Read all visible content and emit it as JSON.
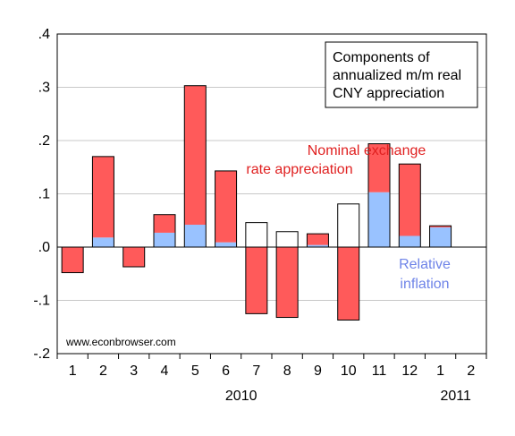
{
  "chart_data": {
    "type": "bar",
    "stacked": true,
    "ylim": [
      -0.2,
      0.4
    ],
    "ytick_values": [
      -0.2,
      -0.1,
      0.0,
      0.1,
      0.2,
      0.3,
      0.4
    ],
    "ytick_labels": [
      "-.2",
      "-.1",
      ".0",
      ".1",
      ".2",
      ".3",
      ".4"
    ],
    "categories": [
      "1",
      "2",
      "3",
      "4",
      "5",
      "6",
      "7",
      "8",
      "9",
      "10",
      "11",
      "12",
      "1",
      "2"
    ],
    "year_labels": [
      {
        "label": "2010",
        "under_category_index": 5.5
      },
      {
        "label": "2011",
        "under_category_index": 12.5
      }
    ],
    "series": [
      {
        "name": "Relative inflation",
        "color": "#99c2ff",
        "values": [
          0.0,
          0.018,
          0.0,
          0.027,
          0.042,
          0.009,
          0.0,
          0.0,
          0.004,
          0.0,
          0.103,
          0.021,
          0.037,
          null
        ]
      },
      {
        "name": "Nominal exchange rate appreciation",
        "color": "#ff5a5a",
        "values": [
          -0.048,
          0.152,
          -0.037,
          0.034,
          0.261,
          0.134,
          -0.125,
          -0.132,
          0.021,
          -0.137,
          0.091,
          0.135,
          0.003,
          null
        ]
      }
    ],
    "net_lines": [
      {
        "from": -0.048,
        "to": 0.0
      },
      {
        "from": 0.0,
        "to": 0.17
      },
      {
        "from": -0.037,
        "to": 0.0
      },
      {
        "from": 0.0,
        "to": 0.061
      },
      {
        "from": 0.0,
        "to": 0.303
      },
      {
        "from": 0.0,
        "to": 0.143
      },
      {
        "from": -0.125,
        "to": 0.046
      },
      {
        "from": -0.132,
        "to": 0.029
      },
      {
        "from": 0.0,
        "to": 0.025
      },
      {
        "from": -0.137,
        "to": 0.081
      },
      {
        "from": 0.0,
        "to": 0.194
      },
      {
        "from": 0.0,
        "to": 0.156
      },
      {
        "from": 0.0,
        "to": 0.04
      }
    ],
    "legend_box_lines": [
      "Components of",
      "annualized m/m real",
      "CNY appreciation"
    ],
    "legend_placement": "top-right",
    "series_labels": [
      {
        "lines": [
          "Nominal exchange",
          "rate appreciation"
        ],
        "color": "#e02020"
      },
      {
        "lines": [
          "Relative",
          "inflation"
        ],
        "color": "#6f84e8"
      }
    ],
    "source_text": "www.econbrowser.com",
    "grid": true
  }
}
